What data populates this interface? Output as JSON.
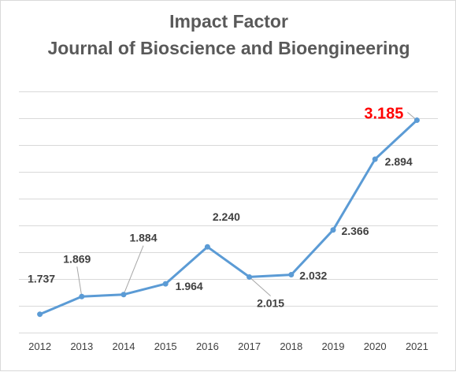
{
  "title_line1": "Impact Factor",
  "title_line2": "Journal of Bioscience and Bioengineering",
  "chart_data": {
    "type": "line",
    "title": "Impact Factor\nJournal of Bioscience and Bioengineering",
    "categories": [
      "2012",
      "2013",
      "2014",
      "2015",
      "2016",
      "2017",
      "2018",
      "2019",
      "2020",
      "2021"
    ],
    "series": [
      {
        "values": [
          1.737,
          1.869,
          1.884,
          1.964,
          2.24,
          2.015,
          2.032,
          2.366,
          2.894,
          3.185
        ],
        "labels": [
          "1.737",
          "1.869",
          "1.884",
          "1.964",
          "2.240",
          "2.015",
          "2.032",
          "2.366",
          "2.894",
          "3.185"
        ]
      }
    ],
    "ylim": [
      1.6,
      3.4
    ],
    "y_gridlines": [
      1.6,
      1.8,
      2.0,
      2.2,
      2.4,
      2.6,
      2.8,
      3.0,
      3.2,
      3.4
    ],
    "y_tick_labels_shown": false,
    "grid": true,
    "highlight_index": 9,
    "colors": {
      "line": "#5b9bd5",
      "grid": "#d9d9d9",
      "label": "#404040",
      "highlight": "#ff0000",
      "leader": "#a6a6a6"
    }
  }
}
